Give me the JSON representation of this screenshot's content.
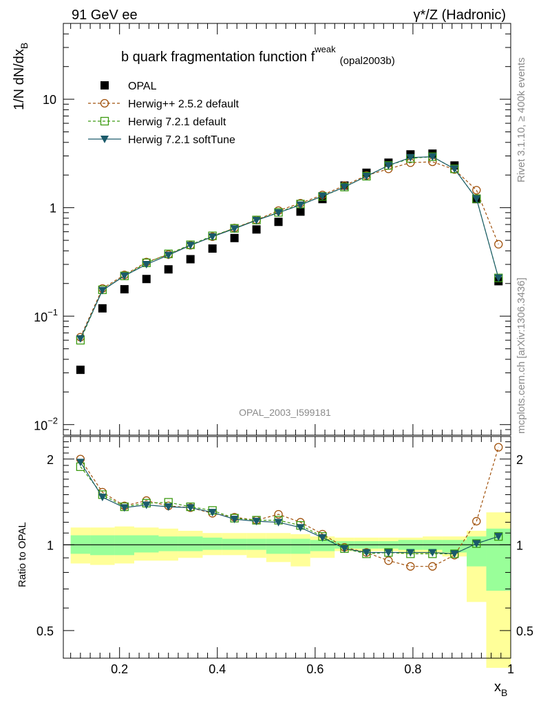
{
  "header": {
    "left": "91 GeV ee",
    "right": "γ*/Z (Hadronic)"
  },
  "side_labels": {
    "rivet": "Rivet 3.1.10, ≥ 400k events",
    "mcplots": "mcplots.cern.ch [arXiv:1306.3436]"
  },
  "colors": {
    "opal": "#000000",
    "herwigpp": "#a0500a",
    "herwig721": "#3c9a10",
    "softtune": "#1a5a6a",
    "band_outer": "#ffff99",
    "band_inner": "#99ff99"
  },
  "chart_data": [
    {
      "type": "scatter",
      "panel": "main",
      "title_main": "b quark fragmentation function f",
      "title_sup": "weak",
      "title_sub": "(opal2003b)",
      "ylabel_main": "1/N dN/dx",
      "ylabel_sub": "B",
      "watermark": "OPAL_2003_I599181",
      "yscale": "log",
      "ylim": [
        0.008,
        50
      ],
      "xlim": [
        0.085,
        1.0
      ],
      "ytick_labels": [
        {
          "value": 10,
          "text": "10"
        },
        {
          "value": 1,
          "text": "1"
        },
        {
          "value": 0.1,
          "base": "10",
          "exp": "−1"
        },
        {
          "value": 0.01,
          "base": "10",
          "exp": "−2"
        }
      ],
      "x": [
        0.12,
        0.165,
        0.21,
        0.255,
        0.3,
        0.345,
        0.39,
        0.435,
        0.48,
        0.525,
        0.57,
        0.615,
        0.66,
        0.705,
        0.75,
        0.795,
        0.84,
        0.885,
        0.93,
        0.975
      ],
      "series": [
        {
          "name": "OPAL",
          "key": "opal",
          "marker": "square",
          "line": "none",
          "values": [
            0.032,
            0.118,
            0.177,
            0.22,
            0.27,
            0.335,
            0.42,
            0.525,
            0.63,
            0.74,
            0.92,
            1.2,
            1.6,
            2.1,
            2.6,
            3.1,
            3.15,
            2.45,
            1.2,
            0.21
          ]
        },
        {
          "name": "Herwig++ 2.5.2 default",
          "key": "herwigpp",
          "marker": "circle",
          "line": "dashed",
          "values": [
            0.064,
            0.18,
            0.24,
            0.315,
            0.37,
            0.45,
            0.54,
            0.65,
            0.77,
            0.94,
            1.1,
            1.31,
            1.6,
            1.98,
            2.28,
            2.6,
            2.65,
            2.25,
            1.45,
            0.46
          ]
        },
        {
          "name": "Herwig 7.2.1 default",
          "key": "herwig721",
          "marker": "square-open",
          "line": "dashed",
          "values": [
            0.06,
            0.175,
            0.235,
            0.31,
            0.375,
            0.455,
            0.55,
            0.645,
            0.77,
            0.905,
            1.08,
            1.27,
            1.55,
            1.95,
            2.45,
            2.85,
            2.95,
            2.28,
            1.21,
            0.225
          ]
        },
        {
          "name": "Herwig 7.2.1 softTune",
          "key": "softtune",
          "marker": "triangle-down",
          "line": "solid",
          "values": [
            0.062,
            0.173,
            0.235,
            0.3,
            0.365,
            0.45,
            0.54,
            0.64,
            0.765,
            0.9,
            1.06,
            1.28,
            1.55,
            1.95,
            2.45,
            2.9,
            2.95,
            2.28,
            1.21,
            0.225
          ]
        }
      ]
    },
    {
      "type": "line",
      "panel": "ratio",
      "ylabel": "Ratio to OPAL",
      "xlabel_main": "x",
      "xlabel_sub": "B",
      "yscale": "log",
      "ylim": [
        0.4,
        2.4
      ],
      "xlim": [
        0.085,
        1.0
      ],
      "yticks": [
        0.5,
        1,
        2
      ],
      "ytick_labels": [
        "0.5",
        "1",
        "2"
      ],
      "xticks": [
        0.2,
        0.4,
        0.6,
        0.8,
        1.0
      ],
      "xtick_labels": [
        "0.2",
        "0.4",
        "0.6",
        "0.8",
        "1"
      ],
      "bin_edges": [
        0.1,
        0.14,
        0.19,
        0.23,
        0.28,
        0.32,
        0.37,
        0.41,
        0.46,
        0.5,
        0.55,
        0.59,
        0.64,
        0.68,
        0.73,
        0.77,
        0.82,
        0.86,
        0.91,
        0.95,
        1.0
      ],
      "band_outer_lo": [
        0.86,
        0.85,
        0.86,
        0.88,
        0.88,
        0.9,
        0.92,
        0.92,
        0.9,
        0.87,
        0.84,
        0.9,
        0.95,
        0.95,
        0.95,
        0.93,
        0.93,
        0.91,
        0.63,
        0.37
      ],
      "band_outer_hi": [
        1.15,
        1.15,
        1.16,
        1.15,
        1.14,
        1.12,
        1.1,
        1.1,
        1.1,
        1.1,
        1.09,
        1.07,
        1.06,
        1.06,
        1.06,
        1.06,
        1.07,
        1.07,
        1.12,
        1.3
      ],
      "band_inner_lo": [
        0.93,
        0.92,
        0.92,
        0.94,
        0.95,
        0.95,
        0.96,
        0.96,
        0.96,
        0.93,
        0.93,
        0.95,
        0.97,
        0.97,
        0.97,
        0.96,
        0.96,
        0.94,
        0.84,
        0.69
      ],
      "band_inner_hi": [
        1.08,
        1.08,
        1.08,
        1.08,
        1.07,
        1.07,
        1.06,
        1.05,
        1.05,
        1.05,
        1.05,
        1.04,
        1.03,
        1.03,
        1.03,
        1.04,
        1.04,
        1.04,
        1.07,
        1.14
      ],
      "x": [
        0.12,
        0.165,
        0.21,
        0.255,
        0.3,
        0.345,
        0.39,
        0.435,
        0.48,
        0.525,
        0.57,
        0.615,
        0.66,
        0.705,
        0.75,
        0.795,
        0.84,
        0.885,
        0.93,
        0.975
      ],
      "series": [
        {
          "name": "Herwig++ 2.5.2 default",
          "key": "herwigpp",
          "marker": "circle",
          "line": "dashed",
          "values": [
            2.0,
            1.53,
            1.37,
            1.43,
            1.37,
            1.35,
            1.29,
            1.25,
            1.22,
            1.28,
            1.2,
            1.09,
            0.98,
            0.94,
            0.88,
            0.84,
            0.84,
            0.92,
            1.21,
            2.2
          ]
        },
        {
          "name": "Herwig 7.2.1 default",
          "key": "herwig721",
          "marker": "square-open",
          "line": "dashed",
          "values": [
            1.88,
            1.5,
            1.36,
            1.4,
            1.41,
            1.36,
            1.32,
            1.24,
            1.22,
            1.22,
            1.17,
            1.07,
            0.97,
            0.93,
            0.94,
            0.93,
            0.93,
            0.93,
            1.01,
            1.07
          ]
        },
        {
          "name": "Herwig 7.2.1 softTune",
          "key": "softtune",
          "marker": "triangle-down",
          "line": "solid",
          "values": [
            1.95,
            1.47,
            1.35,
            1.38,
            1.36,
            1.35,
            1.3,
            1.23,
            1.21,
            1.2,
            1.15,
            1.06,
            0.97,
            0.94,
            0.94,
            0.94,
            0.94,
            0.93,
            1.01,
            1.07
          ]
        }
      ]
    }
  ]
}
